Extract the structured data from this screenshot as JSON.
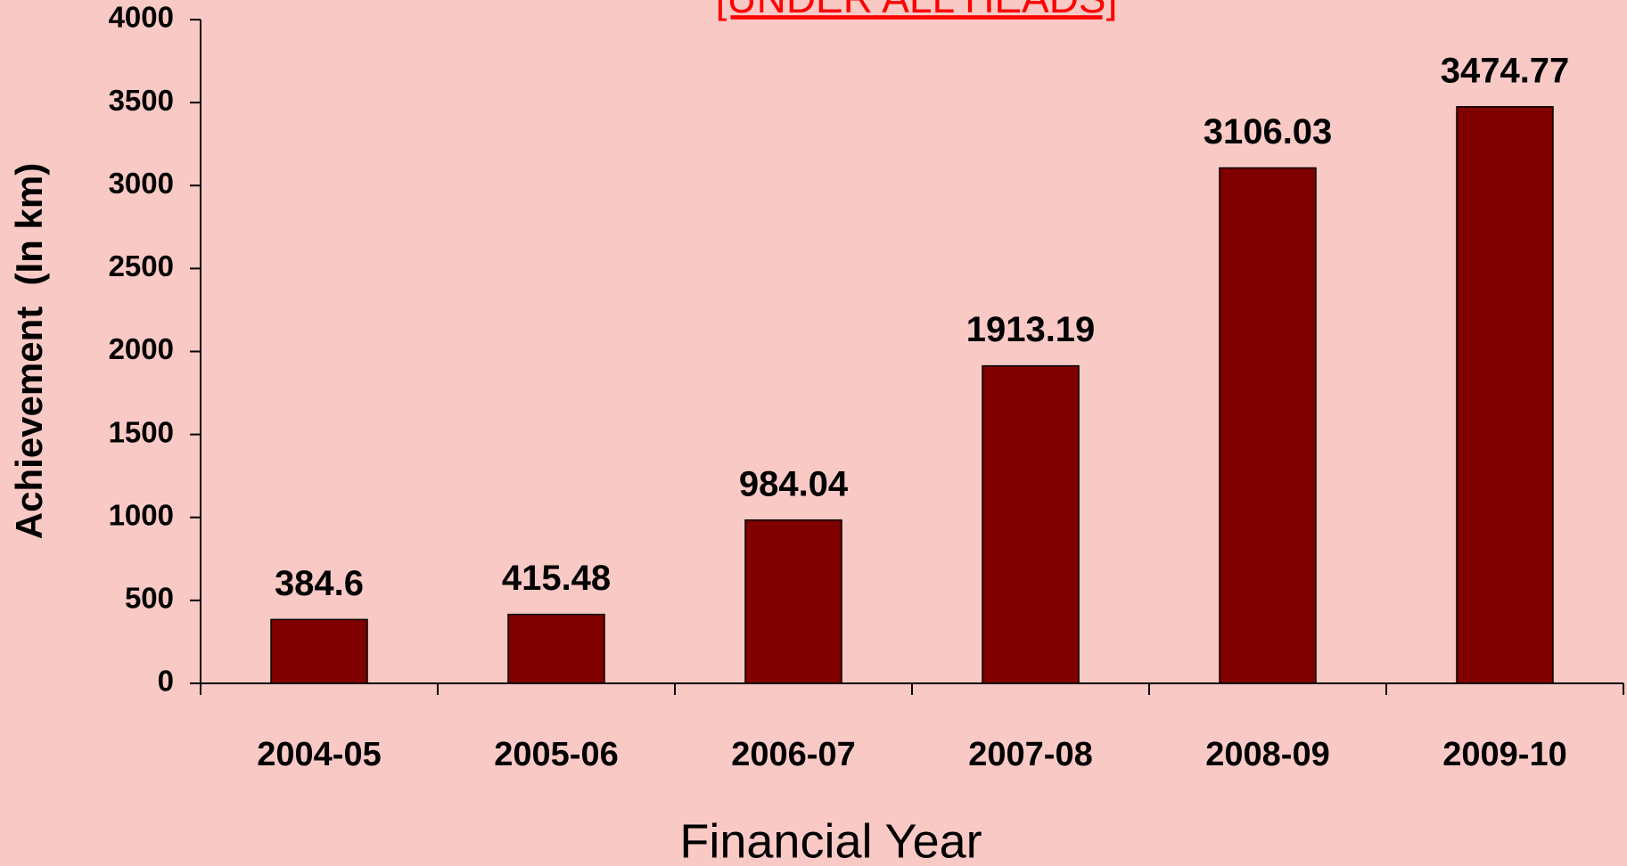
{
  "chart_data": {
    "type": "bar",
    "title": "[UNDER ALL HEADS]",
    "y_label": "Achievement  (In km)",
    "x_label": "Financial Year",
    "categories": [
      "2004-05",
      "2005-06",
      "2006-07",
      "2007-08",
      "2008-09",
      "2009-10"
    ],
    "values": [
      384.6,
      415.48,
      984.04,
      1913.19,
      3106.03,
      3474.77
    ],
    "color": "#800000",
    "ylim": [
      0,
      4000
    ],
    "yticks": [
      0,
      500,
      1000,
      1500,
      2000,
      2500,
      3000,
      3500,
      4000
    ],
    "grid": false
  }
}
